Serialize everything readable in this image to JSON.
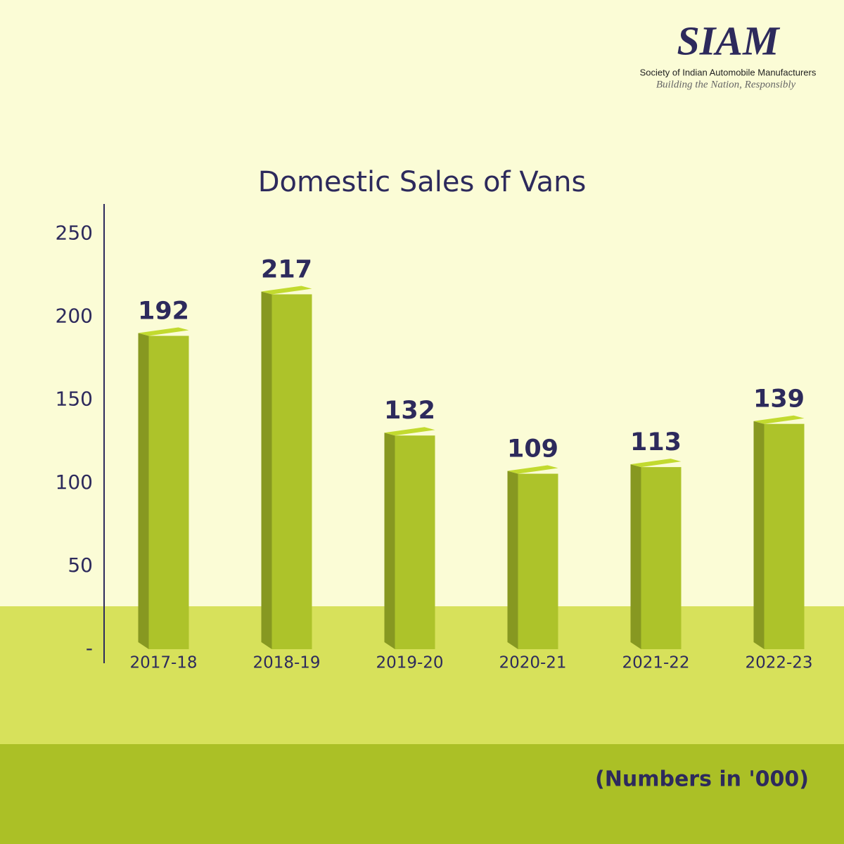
{
  "logo": {
    "name": "SIAM",
    "full_name": "Society of Indian Automobile Manufacturers",
    "tagline": "Building the Nation, Responsibly"
  },
  "chart_data": {
    "type": "bar",
    "title": "Domestic Sales of Vans",
    "categories": [
      "2017-18",
      "2018-19",
      "2019-20",
      "2020-21",
      "2021-22",
      "2022-23"
    ],
    "values": [
      192,
      217,
      132,
      109,
      113,
      139
    ],
    "color": "#adc32a",
    "ylim": [
      0,
      268
    ],
    "yticks": [
      {
        "value": 0,
        "label": "-"
      },
      50,
      100,
      150,
      200,
      250
    ],
    "note": "(Numbers in '000)"
  }
}
